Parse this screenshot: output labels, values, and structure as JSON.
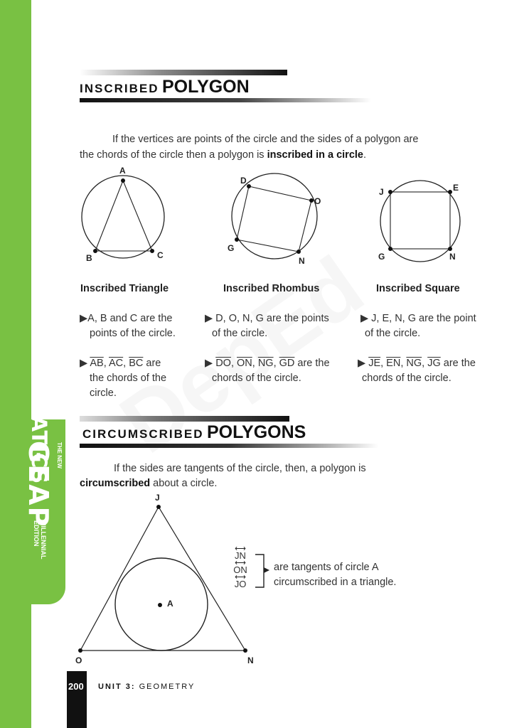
{
  "sidebar": {
    "subject": "MATHEMATICS",
    "series_prefix": "THE NEW",
    "series_name": "GEAP",
    "edition": [
      "MILLENNIAL",
      "EDITION"
    ],
    "color": "#79c143"
  },
  "watermark": "DepEd",
  "section1": {
    "title_prefix": "INSCRIBED",
    "title_main": "POLYGON",
    "para_line1": "If the vertices are points of the circle and the sides of a polygon are",
    "para_line2_pre": "the chords of the circle then a polygon is ",
    "para_line2_bold": "inscribed in a circle",
    "para_line2_post": ".",
    "figures": [
      {
        "caption": "Inscribed Triangle",
        "labels": [
          "A",
          "B",
          "C"
        ],
        "bullet1": [
          "▶A, B and C are the",
          "points of the circle."
        ],
        "bullet2_chords": [
          "AB",
          "AC",
          "BC"
        ],
        "bullet2_tail": [
          "are",
          "the chords of the",
          "circle."
        ]
      },
      {
        "caption": "Inscribed Rhombus",
        "labels": [
          "D",
          "O",
          "N",
          "G"
        ],
        "bullet1": [
          "▶ D, O, N, G are the points",
          "of the circle."
        ],
        "bullet2_chords": [
          "DO",
          "ON",
          "NG",
          "GD"
        ],
        "bullet2_tail": [
          "are the",
          "chords of the circle."
        ]
      },
      {
        "caption": "Inscribed Square",
        "labels": [
          "J",
          "E",
          "N",
          "G"
        ],
        "bullet1": [
          "▶ J, E, N, G are the point",
          "of the circle."
        ],
        "bullet2_chords": [
          "JE",
          "EN",
          "NG",
          "JG"
        ],
        "bullet2_tail": [
          "are the",
          "chords of the circle."
        ]
      }
    ]
  },
  "section2": {
    "title_prefix": "CIRCUMSCRIBED",
    "title_main": "POLYGONS",
    "para_line1": "If the sides are tangents of the circle, then, a polygon is",
    "para_line2_bold": "circumscribed",
    "para_line2_post": " about a circle.",
    "labels": [
      "J",
      "A",
      "O",
      "N"
    ],
    "tangents": [
      "JN",
      "ON",
      "JO"
    ],
    "note_line1": "are tangents of circle A",
    "note_line2": "circumscribed in a triangle."
  },
  "footer": {
    "page_number": "200",
    "unit_label": "UNIT 3:",
    "unit_topic": "GEOMETRY"
  }
}
